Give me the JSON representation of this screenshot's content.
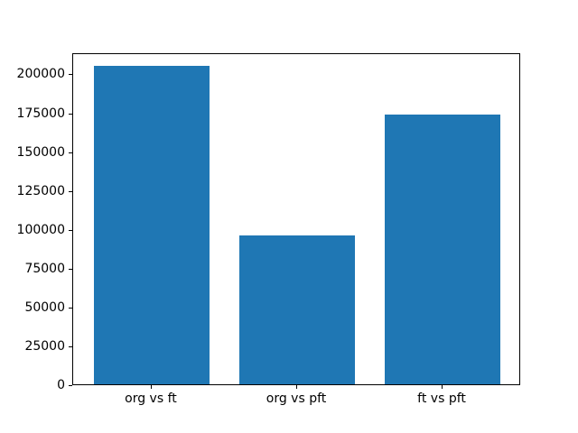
{
  "chart_data": {
    "type": "bar",
    "title": "",
    "xlabel": "",
    "ylabel": "",
    "categories": [
      "org vs ft",
      "org vs pft",
      "ft vs pft"
    ],
    "values": [
      204900,
      95800,
      173400
    ],
    "yticks": [
      0,
      25000,
      50000,
      75000,
      100000,
      125000,
      150000,
      175000,
      200000
    ],
    "ytick_labels": [
      "0",
      "25000",
      "50000",
      "75000",
      "100000",
      "125000",
      "150000",
      "175000",
      "200000"
    ],
    "ylim": [
      0,
      213600
    ],
    "bar_color": "#1f77b4",
    "axis_color": "#000000",
    "background_color": "#ffffff",
    "grid": false,
    "legend": "none",
    "bar_width_fraction": 0.8
  },
  "layout_note": "matplotlib-style single-series bar chart, no title, no axis labels"
}
